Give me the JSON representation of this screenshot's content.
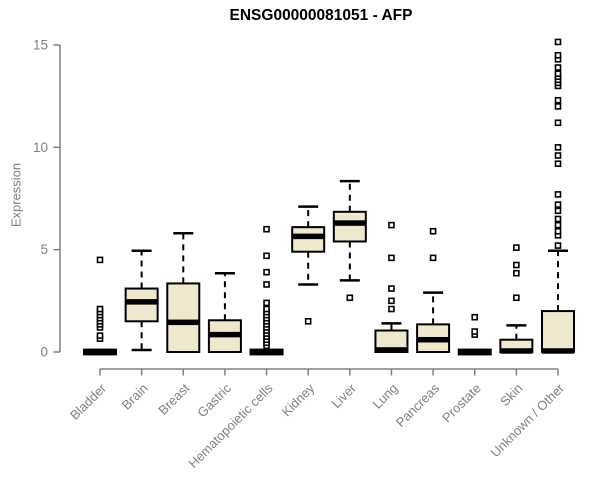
{
  "chart_data": {
    "type": "boxplot",
    "title": "ENSG00000081051 - AFP",
    "ylabel": "Expression",
    "xlabel": "",
    "ylim": [
      0,
      15
    ],
    "yticks": [
      0,
      5,
      10,
      15
    ],
    "grid": false,
    "legend": false,
    "categories": [
      "Bladder",
      "Brain",
      "Breast",
      "Gastric",
      "Hematopoietic cells",
      "Kidney",
      "Liver",
      "Lung",
      "Pancreas",
      "Prostate",
      "Skin",
      "Unknown / Other"
    ],
    "series": [
      {
        "category": "Bladder",
        "min": 0,
        "q1": 0,
        "median": 0,
        "q3": 0,
        "max": 0,
        "outliers": [
          0.65,
          0.8,
          1.2,
          1.35,
          1.5,
          1.65,
          1.8,
          1.95,
          2.1,
          4.5
        ]
      },
      {
        "category": "Brain",
        "min": 0.1,
        "q1": 1.5,
        "median": 2.45,
        "q3": 3.1,
        "max": 4.95,
        "outliers": []
      },
      {
        "category": "Breast",
        "min": 0,
        "q1": 0,
        "median": 1.45,
        "q3": 3.35,
        "max": 5.8,
        "outliers": []
      },
      {
        "category": "Gastric",
        "min": 0,
        "q1": 0,
        "median": 0.85,
        "q3": 1.55,
        "max": 3.85,
        "outliers": []
      },
      {
        "category": "Hematopoietic cells",
        "min": 0,
        "q1": 0,
        "median": 0,
        "q3": 0,
        "max": 0,
        "outliers": [
          0.3,
          0.45,
          0.6,
          0.75,
          0.9,
          1.05,
          1.2,
          1.35,
          1.5,
          1.65,
          1.8,
          1.95,
          2.1,
          2.4,
          3.3,
          3.9,
          4.7,
          6.0
        ]
      },
      {
        "category": "Kidney",
        "min": 3.3,
        "q1": 4.9,
        "median": 5.65,
        "q3": 6.1,
        "max": 7.1,
        "outliers": [
          1.5
        ]
      },
      {
        "category": "Liver",
        "min": 3.5,
        "q1": 5.4,
        "median": 6.3,
        "q3": 6.85,
        "max": 8.35,
        "outliers": [
          2.65
        ]
      },
      {
        "category": "Lung",
        "min": 0,
        "q1": 0,
        "median": 0.1,
        "q3": 1.05,
        "max": 1.4,
        "outliers": [
          2.1,
          2.5,
          3.1,
          4.6,
          6.2
        ]
      },
      {
        "category": "Pancreas",
        "min": 0,
        "q1": 0,
        "median": 0.6,
        "q3": 1.35,
        "max": 2.9,
        "outliers": [
          4.6,
          5.9
        ]
      },
      {
        "category": "Prostate",
        "min": 0,
        "q1": 0,
        "median": 0,
        "q3": 0,
        "max": 0,
        "outliers": [
          0.85,
          1.0,
          1.7
        ]
      },
      {
        "category": "Skin",
        "min": 0,
        "q1": 0,
        "median": 0.05,
        "q3": 0.6,
        "max": 1.3,
        "outliers": [
          2.65,
          3.85,
          4.25,
          5.1
        ]
      },
      {
        "category": "Unknown / Other",
        "min": 0,
        "q1": 0,
        "median": 0.05,
        "q3": 2.0,
        "max": 4.95,
        "outliers": [
          5.2,
          5.7,
          5.9,
          6.2,
          6.5,
          6.9,
          7.2,
          7.7,
          9.2,
          9.6,
          10.0,
          11.2,
          12.0,
          12.3,
          13.0,
          13.15,
          13.3,
          13.45,
          13.6,
          13.9,
          14.3,
          14.5,
          15.15
        ]
      }
    ],
    "colors": {
      "box_fill": "#EFE8CE",
      "box_stroke": "#000000",
      "median": "#000000",
      "outlier": "#000000",
      "axis": "#808080",
      "tick_label": "#808080",
      "title": "#000000"
    }
  }
}
